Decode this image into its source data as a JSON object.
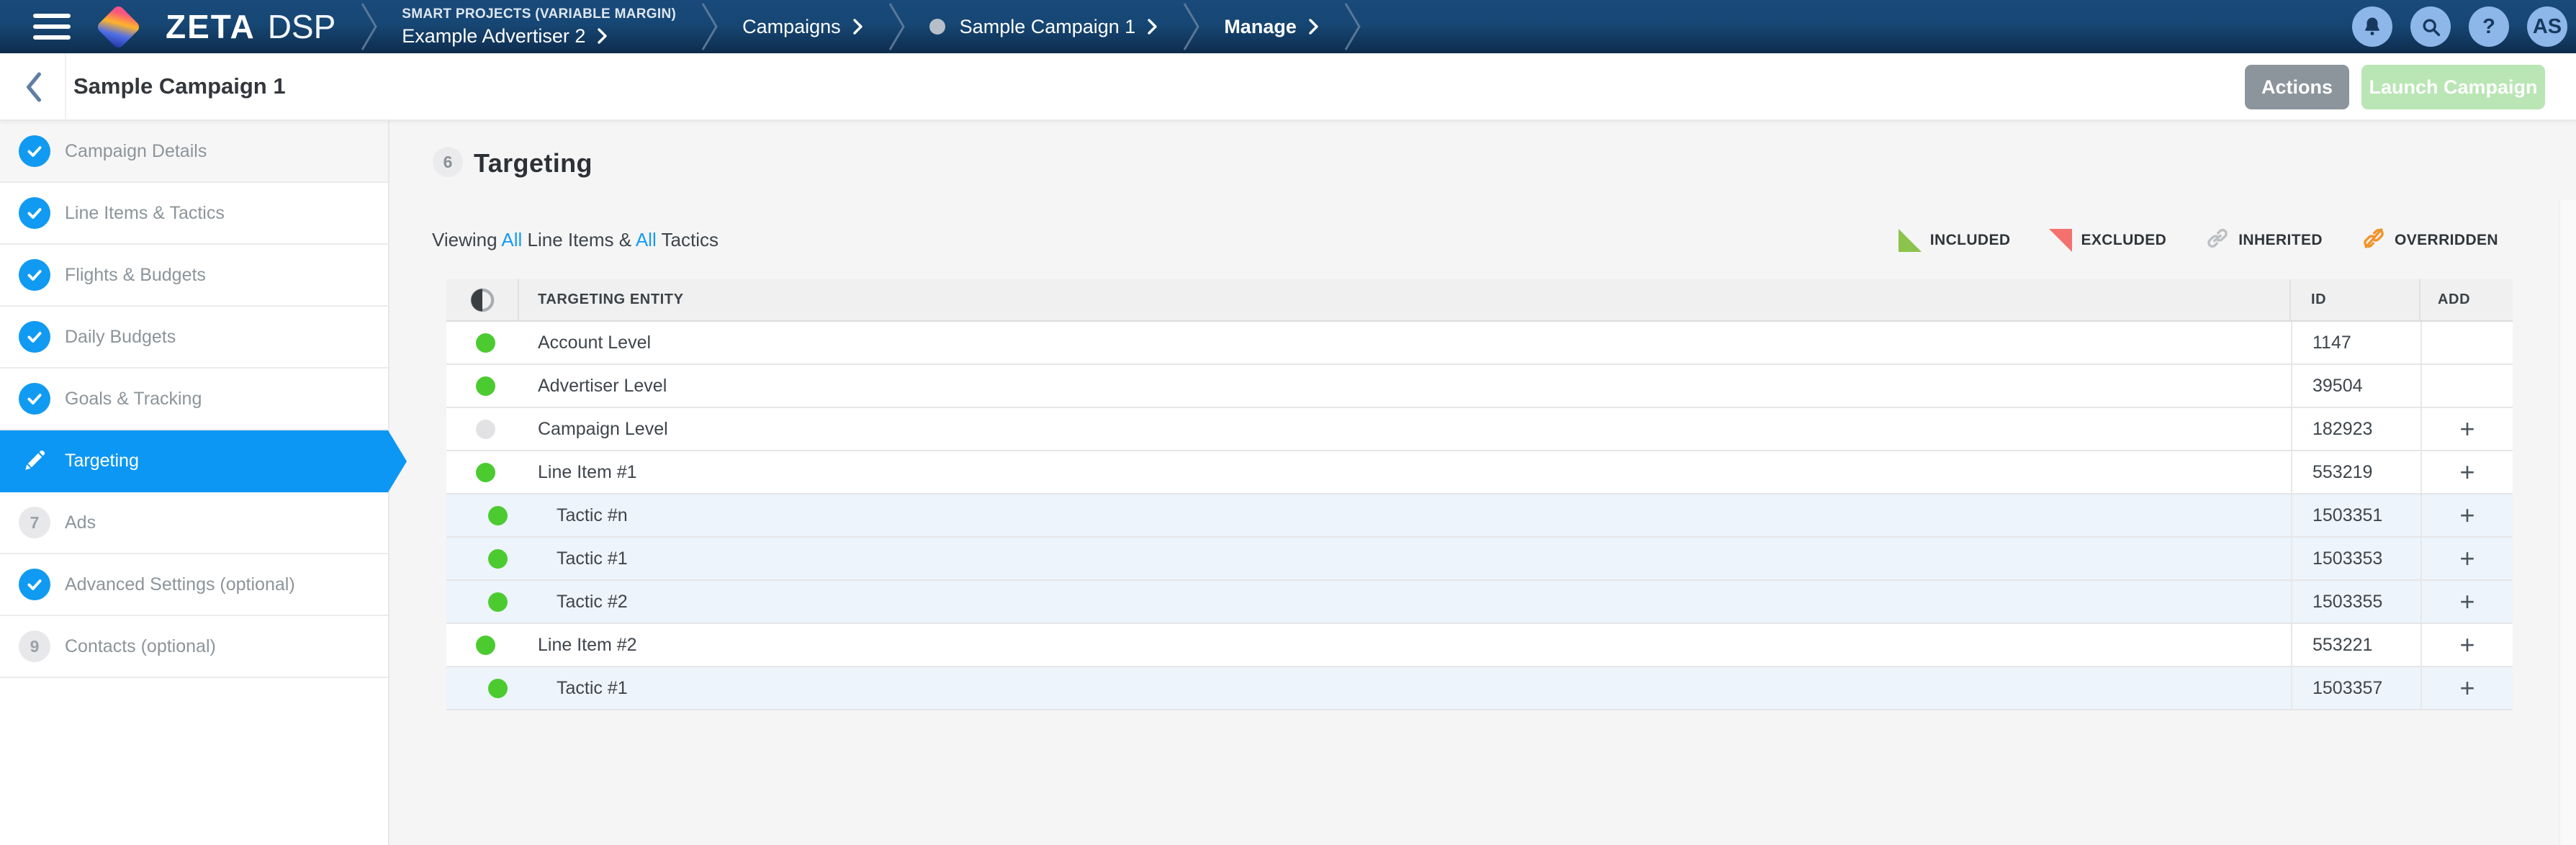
{
  "nav": {
    "brand": {
      "zeta": "ZETA",
      "dsp": "DSP"
    },
    "breadcrumb": {
      "project": "SMART PROJECTS (VARIABLE MARGIN)",
      "advertiser": "Example Advertiser 2",
      "campaigns": "Campaigns",
      "campaign": "Sample Campaign 1",
      "manage": "Manage"
    },
    "help_glyph": "?",
    "user_initials": "AS"
  },
  "header": {
    "title": "Sample Campaign 1",
    "actions_label": "Actions",
    "launch_label": "Launch Campaign"
  },
  "sidebar": {
    "items": [
      {
        "label": "Campaign Details",
        "state": "done",
        "highlight": true
      },
      {
        "label": "Line Items & Tactics",
        "state": "done"
      },
      {
        "label": "Flights & Budgets",
        "state": "done"
      },
      {
        "label": "Daily Budgets",
        "state": "done"
      },
      {
        "label": "Goals & Tracking",
        "state": "done"
      },
      {
        "label": "Targeting",
        "state": "active"
      },
      {
        "label": "Ads",
        "state": "number",
        "number": "7"
      },
      {
        "label": "Advanced Settings (optional)",
        "state": "done"
      },
      {
        "label": "Contacts (optional)",
        "state": "number",
        "number": "9"
      }
    ]
  },
  "main": {
    "step_number": "6",
    "heading": "Targeting",
    "viewing": {
      "p1": "Viewing",
      "all1": "All",
      "p2": "Line Items &",
      "all2": "All",
      "p3": "Tactics"
    },
    "legend": [
      {
        "label": "INCLUDED",
        "type": "included"
      },
      {
        "label": "EXCLUDED",
        "type": "excluded"
      },
      {
        "label": "INHERITED",
        "type": "inherited"
      },
      {
        "label": "OVERRIDDEN",
        "type": "overridden"
      }
    ],
    "table": {
      "headers": {
        "entity": "TARGETING ENTITY",
        "id": "ID",
        "add": "ADD"
      },
      "plus_glyph": "+",
      "rows": [
        {
          "name": "Account Level",
          "id": "1147",
          "dot": "green",
          "level": 0,
          "add": false,
          "tint": false
        },
        {
          "name": "Advertiser Level",
          "id": "39504",
          "dot": "green",
          "level": 0,
          "add": false,
          "tint": false
        },
        {
          "name": "Campaign Level",
          "id": "182923",
          "dot": "gray",
          "level": 0,
          "add": true,
          "tint": false
        },
        {
          "name": "Line Item #1",
          "id": "553219",
          "dot": "green",
          "level": 0,
          "add": true,
          "tint": false
        },
        {
          "name": "Tactic #n",
          "id": "1503351",
          "dot": "green",
          "level": 1,
          "add": true,
          "tint": true
        },
        {
          "name": "Tactic #1",
          "id": "1503353",
          "dot": "green",
          "level": 1,
          "add": true,
          "tint": true
        },
        {
          "name": "Tactic #2",
          "id": "1503355",
          "dot": "green",
          "level": 1,
          "add": true,
          "tint": true
        },
        {
          "name": "Line Item #2",
          "id": "553221",
          "dot": "green",
          "level": 0,
          "add": true,
          "tint": false
        },
        {
          "name": "Tactic #1",
          "id": "1503357",
          "dot": "green",
          "level": 1,
          "add": true,
          "tint": true
        }
      ]
    }
  },
  "colors": {
    "accent_blue": "#0d97f4",
    "nav_blue": "#164672",
    "link_blue": "#169bf6",
    "green_dot": "#4ccb31",
    "included_green": "#8bc34c",
    "excluded_red": "#f4716d",
    "inherited_gray": "#bcc0c3",
    "overridden_orange": "#f0932a",
    "launch_green": "#b9e6b4",
    "actions_gray": "#8c959c"
  }
}
